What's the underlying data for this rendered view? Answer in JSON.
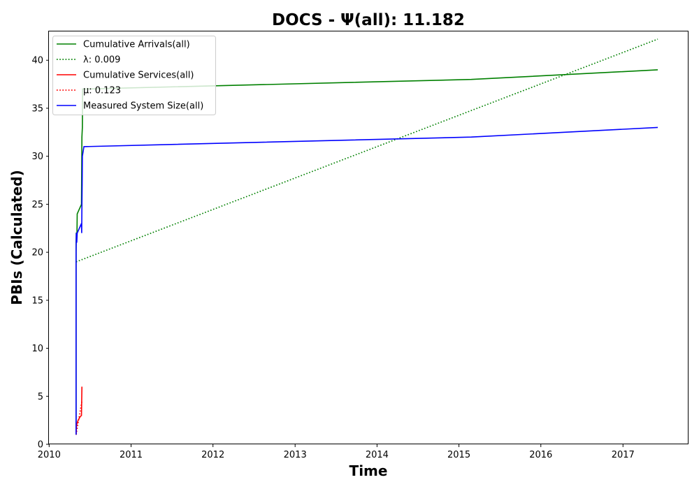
{
  "chart_data": {
    "type": "line",
    "title": "DOCS -  Ψ(all): 11.182",
    "xlabel": "Time",
    "ylabel": "PBIs (Calculated)",
    "xlim": [
      "2009-12-31",
      "2017-10-20"
    ],
    "ylim": [
      0,
      43
    ],
    "x_ticks": [
      "2010",
      "2011",
      "2012",
      "2013",
      "2014",
      "2015",
      "2016",
      "2017"
    ],
    "y_ticks": [
      0,
      5,
      10,
      15,
      20,
      25,
      30,
      35,
      40
    ],
    "grid": false,
    "legend_position": "top-left",
    "colors": {
      "arrivals": "#008000",
      "services": "#ff0000",
      "system_size": "#0000ff"
    },
    "legend": [
      {
        "label": "Cumulative Arrivals(all)",
        "color": "#008000",
        "style": "solid"
      },
      {
        "label": "λ: 0.009",
        "color": "#008000",
        "style": "dotted"
      },
      {
        "label": "Cumulative Services(all)",
        "color": "#ff0000",
        "style": "solid"
      },
      {
        "label": "μ: 0.123",
        "color": "#ff0000",
        "style": "dotted"
      },
      {
        "label": "Measured System Size(all)",
        "color": "#0000ff",
        "style": "solid"
      }
    ],
    "series": [
      {
        "name": "Cumulative Arrivals(all)",
        "color": "#008000",
        "style": "solid",
        "points": [
          [
            "2010-05-01",
            1
          ],
          [
            "2010-05-01",
            21
          ],
          [
            "2010-05-02",
            22
          ],
          [
            "2010-05-05",
            22
          ],
          [
            "2010-05-06",
            24
          ],
          [
            "2010-05-25",
            25
          ],
          [
            "2010-05-27",
            32
          ],
          [
            "2010-05-29",
            33
          ],
          [
            "2010-05-30",
            37
          ],
          [
            "2010-06-05",
            37
          ],
          [
            "2015-02-25",
            38
          ],
          [
            "2017-06-05",
            39
          ]
        ]
      },
      {
        "name": "λ: 0.009",
        "color": "#008000",
        "style": "dotted",
        "points": [
          [
            "2010-05-01",
            19
          ],
          [
            "2017-06-05",
            42.2
          ]
        ]
      },
      {
        "name": "Cumulative Services(all)",
        "color": "#ff0000",
        "style": "solid",
        "points": [
          [
            "2010-05-01",
            1
          ],
          [
            "2010-05-03",
            2
          ],
          [
            "2010-05-10",
            2.5
          ],
          [
            "2010-05-20",
            2.9
          ],
          [
            "2010-05-25",
            3
          ],
          [
            "2010-05-27",
            6
          ]
        ]
      },
      {
        "name": "μ: 0.123",
        "color": "#ff0000",
        "style": "dotted",
        "points": [
          [
            "2010-05-01",
            1
          ],
          [
            "2010-05-27",
            4.5
          ]
        ]
      },
      {
        "name": "Measured System Size(all)",
        "color": "#0000ff",
        "style": "solid",
        "points": [
          [
            "2010-05-01",
            1
          ],
          [
            "2010-05-01",
            20
          ],
          [
            "2010-05-02",
            22
          ],
          [
            "2010-05-04",
            21
          ],
          [
            "2010-05-06",
            22
          ],
          [
            "2010-05-25",
            23
          ],
          [
            "2010-05-26",
            22
          ],
          [
            "2010-05-27",
            25
          ],
          [
            "2010-05-28",
            27
          ],
          [
            "2010-05-29",
            30
          ],
          [
            "2010-06-05",
            31
          ],
          [
            "2015-02-25",
            32
          ],
          [
            "2017-06-05",
            33
          ]
        ]
      }
    ]
  }
}
